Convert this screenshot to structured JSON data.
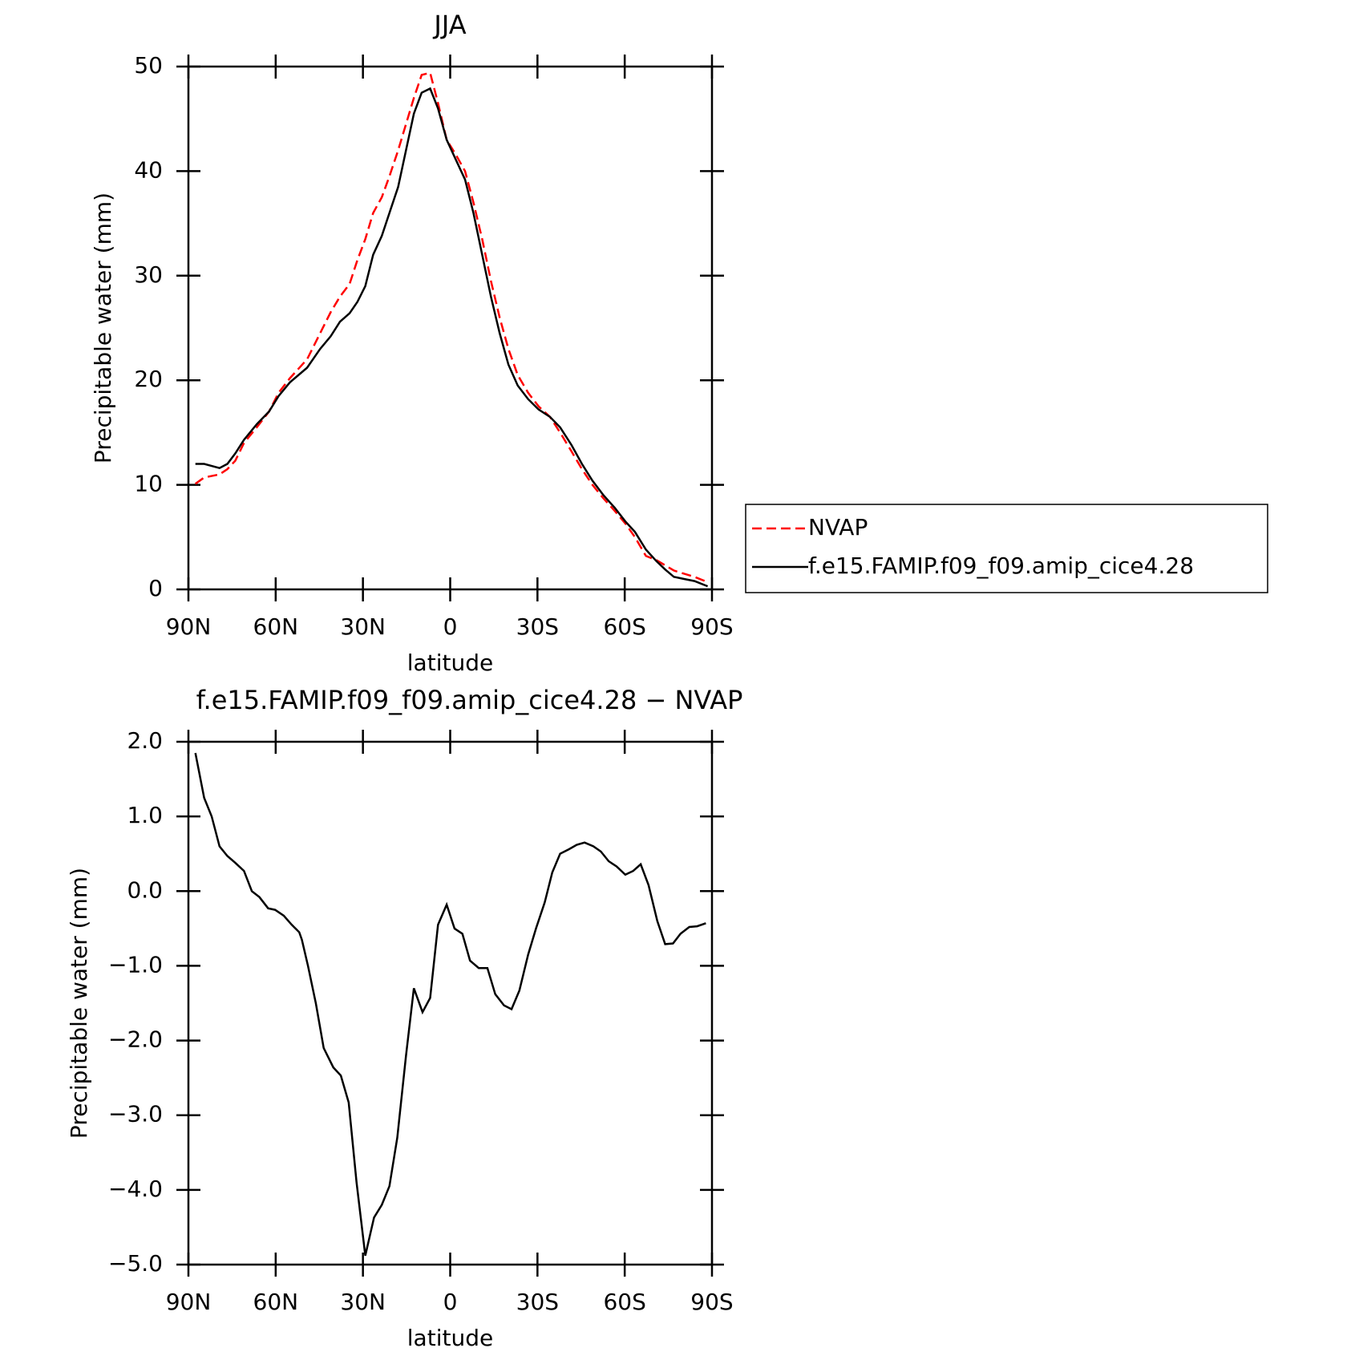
{
  "chart_data": [
    {
      "type": "line",
      "title": "JJA",
      "xlabel": "latitude",
      "ylabel": "Precipitable water (mm)",
      "x": [
        87.6,
        84.6,
        79.3,
        76.6,
        73.9,
        70.9,
        66.5,
        62.3,
        59.0,
        55.1,
        49.2,
        44.7,
        41.1,
        37.9,
        34.6,
        31.9,
        29.2,
        26.5,
        23.5,
        20.9,
        17.9,
        15.2,
        12.5,
        9.8,
        6.9,
        4.2,
        1.2,
        -2.1,
        -5.1,
        -8.0,
        -11.0,
        -14.0,
        -17.0,
        -20.0,
        -23.2,
        -26.8,
        -30.4,
        -34.3,
        -37.8,
        -41.7,
        -45.3,
        -48.9,
        -52.7,
        -56.6,
        -60.2,
        -63.5,
        -67.3,
        -70.9,
        -73.9,
        -76.9,
        -80.4,
        -84.0,
        -88.5
      ],
      "series": [
        {
          "name": "NVAP",
          "color": "#ff0000",
          "line_style": "dashed",
          "values": [
            10.1,
            10.7,
            11.0,
            11.5,
            12.3,
            14.0,
            15.5,
            17.0,
            18.8,
            20.2,
            22.0,
            24.5,
            26.5,
            28.0,
            29.2,
            31.5,
            33.5,
            36.0,
            37.5,
            39.5,
            42.0,
            44.5,
            47.0,
            49.2,
            49.4,
            46.5,
            43.0,
            41.5,
            40.0,
            37.0,
            33.5,
            29.5,
            26.0,
            23.0,
            20.5,
            18.8,
            17.5,
            16.5,
            15.0,
            13.2,
            11.5,
            10.0,
            8.7,
            7.5,
            6.3,
            5.0,
            3.2,
            2.8,
            2.3,
            1.8,
            1.5,
            1.2,
            0.7
          ]
        },
        {
          "name": "f.e15.FAMIP.f09_f09.amip_cice4.28",
          "color": "#000000",
          "line_style": "solid",
          "values": [
            12.0,
            12.0,
            11.6,
            12.0,
            13.0,
            14.3,
            15.8,
            17.0,
            18.5,
            19.8,
            21.2,
            23.0,
            24.2,
            25.6,
            26.4,
            27.5,
            29.0,
            32.0,
            33.8,
            36.0,
            38.5,
            42.0,
            45.5,
            47.5,
            47.9,
            46.0,
            43.0,
            41.0,
            39.2,
            36.0,
            32.0,
            28.0,
            24.5,
            21.5,
            19.5,
            18.2,
            17.2,
            16.5,
            15.5,
            13.8,
            12.0,
            10.4,
            9.0,
            7.8,
            6.5,
            5.5,
            3.8,
            2.7,
            1.9,
            1.2,
            1.0,
            0.8,
            0.3
          ]
        }
      ],
      "xlim": [
        90,
        -90
      ],
      "xticks": [
        {
          "value": 90,
          "label": "90N"
        },
        {
          "value": 60,
          "label": "60N"
        },
        {
          "value": 30,
          "label": "30N"
        },
        0,
        {
          "value": -30,
          "label": "30S"
        },
        {
          "value": -60,
          "label": "60S"
        },
        {
          "value": -90,
          "label": "90S"
        }
      ],
      "ylim": [
        0,
        50
      ],
      "yticks": [
        0,
        10,
        20,
        30,
        40,
        50
      ],
      "legend": "outside right"
    },
    {
      "type": "line",
      "title": "f.e15.FAMIP.f09_f09.amip_cice4.28 − NVAP",
      "xlabel": "latitude",
      "ylabel": "Precipitable water (mm)",
      "x": [
        87.6,
        84.6,
        82.0,
        79.3,
        76.6,
        73.9,
        70.9,
        68.2,
        65.6,
        62.6,
        60.2,
        57.2,
        54.5,
        51.9,
        51.0,
        48.9,
        46.2,
        43.5,
        40.2,
        37.6,
        34.9,
        32.2,
        29.2,
        26.2,
        23.5,
        20.9,
        18.2,
        15.2,
        12.5,
        9.5,
        6.9,
        4.2,
        1.2,
        -1.5,
        -4.2,
        -6.8,
        -9.8,
        -12.8,
        -15.5,
        -18.5,
        -21.1,
        -23.8,
        -26.8,
        -29.5,
        -32.5,
        -35.1,
        -37.8,
        -40.8,
        -43.5,
        -46.2,
        -49.2,
        -51.8,
        -54.5,
        -57.2,
        -60.2,
        -62.9,
        -65.5,
        -68.2,
        -71.2,
        -73.9,
        -76.6,
        -79.2,
        -82.2,
        -84.9,
        -87.9
      ],
      "series": [
        {
          "color": "#000000",
          "line_style": "solid",
          "values": [
            1.85,
            1.25,
            1.0,
            0.6,
            0.47,
            0.38,
            0.27,
            0.0,
            -0.08,
            -0.23,
            -0.25,
            -0.33,
            -0.45,
            -0.55,
            -0.65,
            -1.0,
            -1.5,
            -2.1,
            -2.36,
            -2.47,
            -2.83,
            -3.9,
            -4.88,
            -4.37,
            -4.2,
            -3.95,
            -3.3,
            -2.2,
            -1.3,
            -1.62,
            -1.43,
            -0.45,
            -0.18,
            -0.5,
            -0.57,
            -0.93,
            -1.03,
            -1.03,
            -1.38,
            -1.53,
            -1.58,
            -1.33,
            -0.85,
            -0.5,
            -0.15,
            0.25,
            0.5,
            0.56,
            0.62,
            0.65,
            0.6,
            0.53,
            0.4,
            0.33,
            0.22,
            0.27,
            0.36,
            0.08,
            -0.4,
            -0.71,
            -0.7,
            -0.57,
            -0.48,
            -0.47,
            -0.43
          ]
        }
      ],
      "xlim": [
        90,
        -90
      ],
      "xticks": [
        {
          "value": 90,
          "label": "90N"
        },
        {
          "value": 60,
          "label": "60N"
        },
        {
          "value": 30,
          "label": "30N"
        },
        0,
        {
          "value": -30,
          "label": "30S"
        },
        {
          "value": -60,
          "label": "60S"
        },
        {
          "value": -90,
          "label": "90S"
        }
      ],
      "ylim": [
        -5,
        2
      ],
      "yticks": [
        {
          "value": -5,
          "label": "−5.0"
        },
        {
          "value": -4,
          "label": "−4.0"
        },
        {
          "value": -3,
          "label": "−3.0"
        },
        {
          "value": -2,
          "label": "−2.0"
        },
        {
          "value": -1,
          "label": "−1.0"
        },
        {
          "value": 0,
          "label": "0.0"
        },
        {
          "value": 1,
          "label": "1.0"
        },
        {
          "value": 2,
          "label": "2.0"
        }
      ]
    }
  ]
}
